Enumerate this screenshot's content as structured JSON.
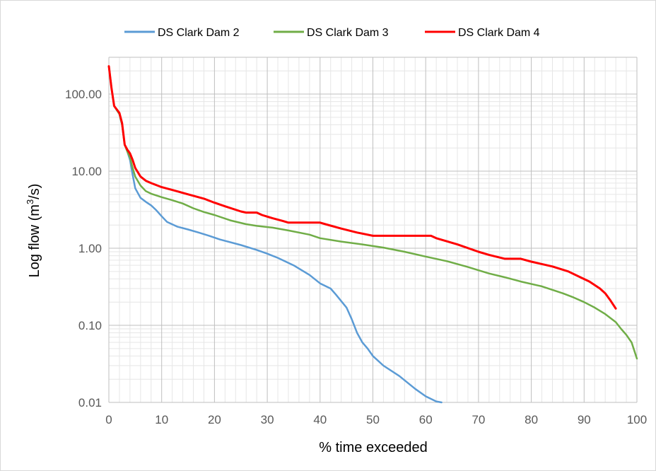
{
  "chart_data": {
    "type": "line",
    "xlabel": "% time exceeded",
    "ylabel_main": "Log flow (m",
    "ylabel_sup": "3",
    "ylabel_end": "/s)",
    "x_ticks": [
      "0",
      "10",
      "20",
      "30",
      "40",
      "50",
      "60",
      "70",
      "80",
      "90",
      "100"
    ],
    "y_ticks": [
      "0.01",
      "0.10",
      "1.00",
      "10.00",
      "100.00"
    ],
    "xlim": [
      0,
      100
    ],
    "ylim": [
      0.01,
      300
    ],
    "y_scale": "log",
    "grid": true,
    "legend_position": "top",
    "series": [
      {
        "name": "DS Clark Dam 2",
        "color": "#5b9bd5",
        "points": [
          [
            0,
            230
          ],
          [
            0.5,
            120
          ],
          [
            1,
            70
          ],
          [
            2,
            55
          ],
          [
            2.5,
            40
          ],
          [
            3,
            22
          ],
          [
            3.5,
            18
          ],
          [
            4,
            14
          ],
          [
            4.5,
            9
          ],
          [
            5,
            6
          ],
          [
            6,
            4.5
          ],
          [
            7,
            4
          ],
          [
            8,
            3.6
          ],
          [
            9,
            3.1
          ],
          [
            10,
            2.6
          ],
          [
            11,
            2.2
          ],
          [
            13,
            1.9
          ],
          [
            15,
            1.75
          ],
          [
            17,
            1.6
          ],
          [
            19,
            1.45
          ],
          [
            21,
            1.3
          ],
          [
            25,
            1.1
          ],
          [
            28,
            0.95
          ],
          [
            30,
            0.85
          ],
          [
            32,
            0.75
          ],
          [
            35,
            0.6
          ],
          [
            38,
            0.45
          ],
          [
            40,
            0.35
          ],
          [
            42,
            0.3
          ],
          [
            43,
            0.25
          ],
          [
            45,
            0.17
          ],
          [
            46,
            0.12
          ],
          [
            47,
            0.08
          ],
          [
            48,
            0.06
          ],
          [
            49,
            0.05
          ],
          [
            50,
            0.04
          ],
          [
            52,
            0.03
          ],
          [
            55,
            0.022
          ],
          [
            58,
            0.015
          ],
          [
            60,
            0.012
          ],
          [
            62,
            0.0103
          ],
          [
            63,
            0.01
          ]
        ]
      },
      {
        "name": "DS Clark Dam 3",
        "color": "#70ad47",
        "points": [
          [
            0,
            230
          ],
          [
            0.5,
            120
          ],
          [
            1,
            70
          ],
          [
            2,
            55
          ],
          [
            2.5,
            40
          ],
          [
            3,
            22
          ],
          [
            3.5,
            18
          ],
          [
            4,
            15
          ],
          [
            4.5,
            11
          ],
          [
            5,
            8.5
          ],
          [
            6,
            6.5
          ],
          [
            7,
            5.5
          ],
          [
            8,
            5.1
          ],
          [
            10,
            4.6
          ],
          [
            12,
            4.2
          ],
          [
            14,
            3.8
          ],
          [
            16,
            3.3
          ],
          [
            18,
            2.95
          ],
          [
            20,
            2.7
          ],
          [
            23,
            2.3
          ],
          [
            26,
            2.05
          ],
          [
            28,
            1.95
          ],
          [
            31,
            1.85
          ],
          [
            34,
            1.7
          ],
          [
            38,
            1.5
          ],
          [
            40,
            1.35
          ],
          [
            44,
            1.22
          ],
          [
            48,
            1.12
          ],
          [
            52,
            1.02
          ],
          [
            56,
            0.9
          ],
          [
            60,
            0.78
          ],
          [
            64,
            0.68
          ],
          [
            68,
            0.57
          ],
          [
            72,
            0.47
          ],
          [
            75,
            0.42
          ],
          [
            78,
            0.37
          ],
          [
            82,
            0.32
          ],
          [
            86,
            0.26
          ],
          [
            88,
            0.23
          ],
          [
            90,
            0.2
          ],
          [
            92,
            0.17
          ],
          [
            94,
            0.14
          ],
          [
            96,
            0.11
          ],
          [
            97,
            0.09
          ],
          [
            98,
            0.075
          ],
          [
            99,
            0.06
          ],
          [
            100,
            0.037
          ]
        ]
      },
      {
        "name": "DS Clark Dam 4",
        "color": "#ff0000",
        "points": [
          [
            0,
            230
          ],
          [
            0.5,
            120
          ],
          [
            1,
            70
          ],
          [
            2,
            57
          ],
          [
            2.5,
            42
          ],
          [
            3,
            22
          ],
          [
            3.5,
            19
          ],
          [
            4,
            17
          ],
          [
            4.5,
            14
          ],
          [
            5,
            11
          ],
          [
            6,
            8.5
          ],
          [
            7,
            7.5
          ],
          [
            8,
            7
          ],
          [
            10,
            6.2
          ],
          [
            12,
            5.7
          ],
          [
            15,
            5
          ],
          [
            18,
            4.4
          ],
          [
            20,
            3.9
          ],
          [
            22,
            3.5
          ],
          [
            25,
            3.0
          ],
          [
            26,
            2.9
          ],
          [
            28,
            2.9
          ],
          [
            29,
            2.7
          ],
          [
            31,
            2.45
          ],
          [
            33,
            2.25
          ],
          [
            34,
            2.15
          ],
          [
            40,
            2.15
          ],
          [
            41,
            2.05
          ],
          [
            44,
            1.8
          ],
          [
            47,
            1.6
          ],
          [
            50,
            1.45
          ],
          [
            51,
            1.45
          ],
          [
            58,
            1.45
          ],
          [
            61,
            1.45
          ],
          [
            62,
            1.35
          ],
          [
            66,
            1.12
          ],
          [
            70,
            0.9
          ],
          [
            72,
            0.82
          ],
          [
            75,
            0.73
          ],
          [
            78,
            0.73
          ],
          [
            80,
            0.67
          ],
          [
            84,
            0.58
          ],
          [
            87,
            0.5
          ],
          [
            89,
            0.43
          ],
          [
            91,
            0.37
          ],
          [
            93,
            0.3
          ],
          [
            94,
            0.26
          ],
          [
            95,
            0.21
          ],
          [
            96,
            0.165
          ]
        ]
      }
    ]
  }
}
